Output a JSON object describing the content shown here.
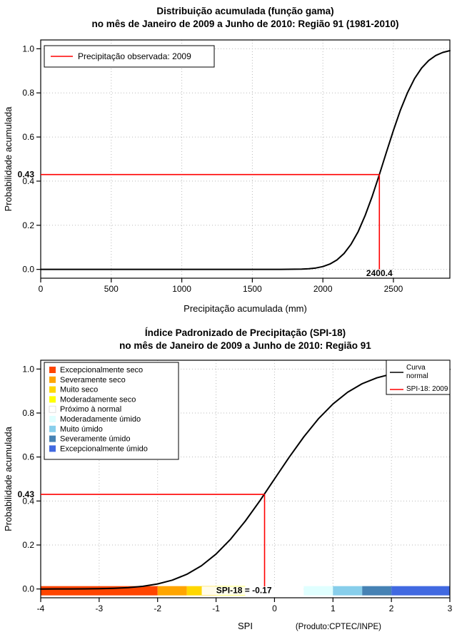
{
  "chart_data": [
    {
      "type": "line",
      "title1": "Distribuição acumulada (função gama)",
      "title2": "no mês de Janeiro de 2009 a Junho de 2010: Região 91 (1981-2010)",
      "xlabel": "Precipitação acumulada (mm)",
      "ylabel": "Probabilidade acumulada",
      "xlim": [
        0,
        2900
      ],
      "ylim": [
        0,
        1
      ],
      "xticks": [
        "0",
        "500",
        "1000",
        "1500",
        "2000",
        "2500"
      ],
      "xtick_values": [
        0,
        500,
        1000,
        1500,
        2000,
        2500
      ],
      "yticks": [
        "0.0",
        "0.2",
        "0.4",
        "0.6",
        "0.8",
        "1.0"
      ],
      "ytick_values": [
        0,
        0.2,
        0.4,
        0.6,
        0.8,
        1
      ],
      "grid": true,
      "legend": [
        {
          "label": "Precipitação observada: 2009",
          "color": "#FF0000"
        }
      ],
      "series": [
        {
          "name": "gamma-cdf-curve",
          "color": "#000000",
          "x": [
            0,
            200,
            400,
            600,
            800,
            1000,
            1200,
            1400,
            1600,
            1700,
            1750,
            1800,
            1850,
            1900,
            1950,
            2000,
            2050,
            2100,
            2150,
            2200,
            2250,
            2300,
            2350,
            2400,
            2450,
            2500,
            2550,
            2600,
            2650,
            2700,
            2750,
            2800,
            2850,
            2900
          ],
          "y": [
            0,
            0,
            0,
            0,
            0,
            0,
            0,
            0.0001,
            0.0001,
            0.0002,
            0.0004,
            0.0006,
            0.0014,
            0.003,
            0.0064,
            0.0128,
            0.0242,
            0.0429,
            0.0719,
            0.1141,
            0.1713,
            0.2444,
            0.3314,
            0.429,
            0.5307,
            0.6304,
            0.7224,
            0.8012,
            0.865,
            0.9129,
            0.9468,
            0.9694,
            0.9833,
            0.9915
          ]
        }
      ],
      "annotation": {
        "prob": 0.43,
        "prob_label": "0.43",
        "value": 2400.4,
        "value_label": "2400.4",
        "color": "#FF0000"
      }
    },
    {
      "type": "line",
      "title1": "Índice Padronizado de Precipitação (SPI-18)",
      "title2": "no mês de Janeiro de 2009 a Junho de 2010: Região 91",
      "xlabel": "SPI",
      "ylabel": "Probabilidade acumulada",
      "credit": "(Produto:CPTEC/INPE)",
      "xlim": [
        -4,
        3
      ],
      "ylim": [
        0,
        1
      ],
      "xticks": [
        "-4",
        "-3",
        "-2",
        "-1",
        "0",
        "1",
        "2",
        "3"
      ],
      "xtick_values": [
        -4,
        -3,
        -2,
        -1,
        0,
        1,
        2,
        3
      ],
      "yticks": [
        "0.0",
        "0.2",
        "0.4",
        "0.6",
        "0.8",
        "1.0"
      ],
      "ytick_values": [
        0,
        0.2,
        0.4,
        0.6,
        0.8,
        1
      ],
      "grid": true,
      "categories": [
        {
          "label": "Excepcionalmente seco",
          "color": "#FF4500",
          "range": [
            -4,
            -2
          ]
        },
        {
          "label": "Severamente seco",
          "color": "#FFA500",
          "range": [
            -2,
            -1.5
          ]
        },
        {
          "label": "Muito seco",
          "color": "#FFD700",
          "range": [
            -1.5,
            -1
          ]
        },
        {
          "label": "Moderadamente seco",
          "color": "#FFFF00",
          "range": [
            -1,
            -0.5
          ]
        },
        {
          "label": "Próximo à normal",
          "color": "#FFFFFF",
          "range": [
            -0.5,
            0.5
          ]
        },
        {
          "label": "Moderadamente úmido",
          "color": "#E0FFFF",
          "range": [
            0.5,
            1
          ]
        },
        {
          "label": "Muito úmido",
          "color": "#87CEEB",
          "range": [
            1,
            1.5
          ]
        },
        {
          "label": "Severamente úmido",
          "color": "#4682B4",
          "range": [
            1.5,
            2
          ]
        },
        {
          "label": "Excepcionalmente úmido",
          "color": "#4169E1",
          "range": [
            2,
            3
          ]
        }
      ],
      "legend_right": [
        {
          "label": "Curva normal",
          "lines": [
            "Curva",
            "normal"
          ],
          "color": "#000000"
        },
        {
          "label": "SPI-18: 2009",
          "lines": [
            "SPI-18: 2009"
          ],
          "color": "#FF0000"
        }
      ],
      "series": [
        {
          "name": "normal-cdf-curve",
          "color": "#000000",
          "x": [
            -4,
            -3.75,
            -3.5,
            -3.25,
            -3,
            -2.75,
            -2.5,
            -2.25,
            -2,
            -1.75,
            -1.5,
            -1.25,
            -1,
            -0.75,
            -0.5,
            -0.25,
            0,
            0.25,
            0.5,
            0.75,
            1,
            1.25,
            1.5,
            1.75,
            2,
            2.25,
            2.5,
            2.75,
            3
          ],
          "y": [
            0.0,
            0.0001,
            0.0002,
            0.0006,
            0.0013,
            0.003,
            0.0062,
            0.0122,
            0.0228,
            0.0401,
            0.0668,
            0.1056,
            0.1587,
            0.2266,
            0.3085,
            0.4013,
            0.5,
            0.5987,
            0.6915,
            0.7734,
            0.8413,
            0.8944,
            0.9332,
            0.9599,
            0.9772,
            0.9878,
            0.9938,
            0.997,
            0.9987
          ]
        }
      ],
      "annotation": {
        "prob": 0.43,
        "prob_label": "0.43",
        "value": -0.17,
        "value_label": "SPI-18 = -0.17",
        "color": "#FF0000"
      }
    }
  ]
}
